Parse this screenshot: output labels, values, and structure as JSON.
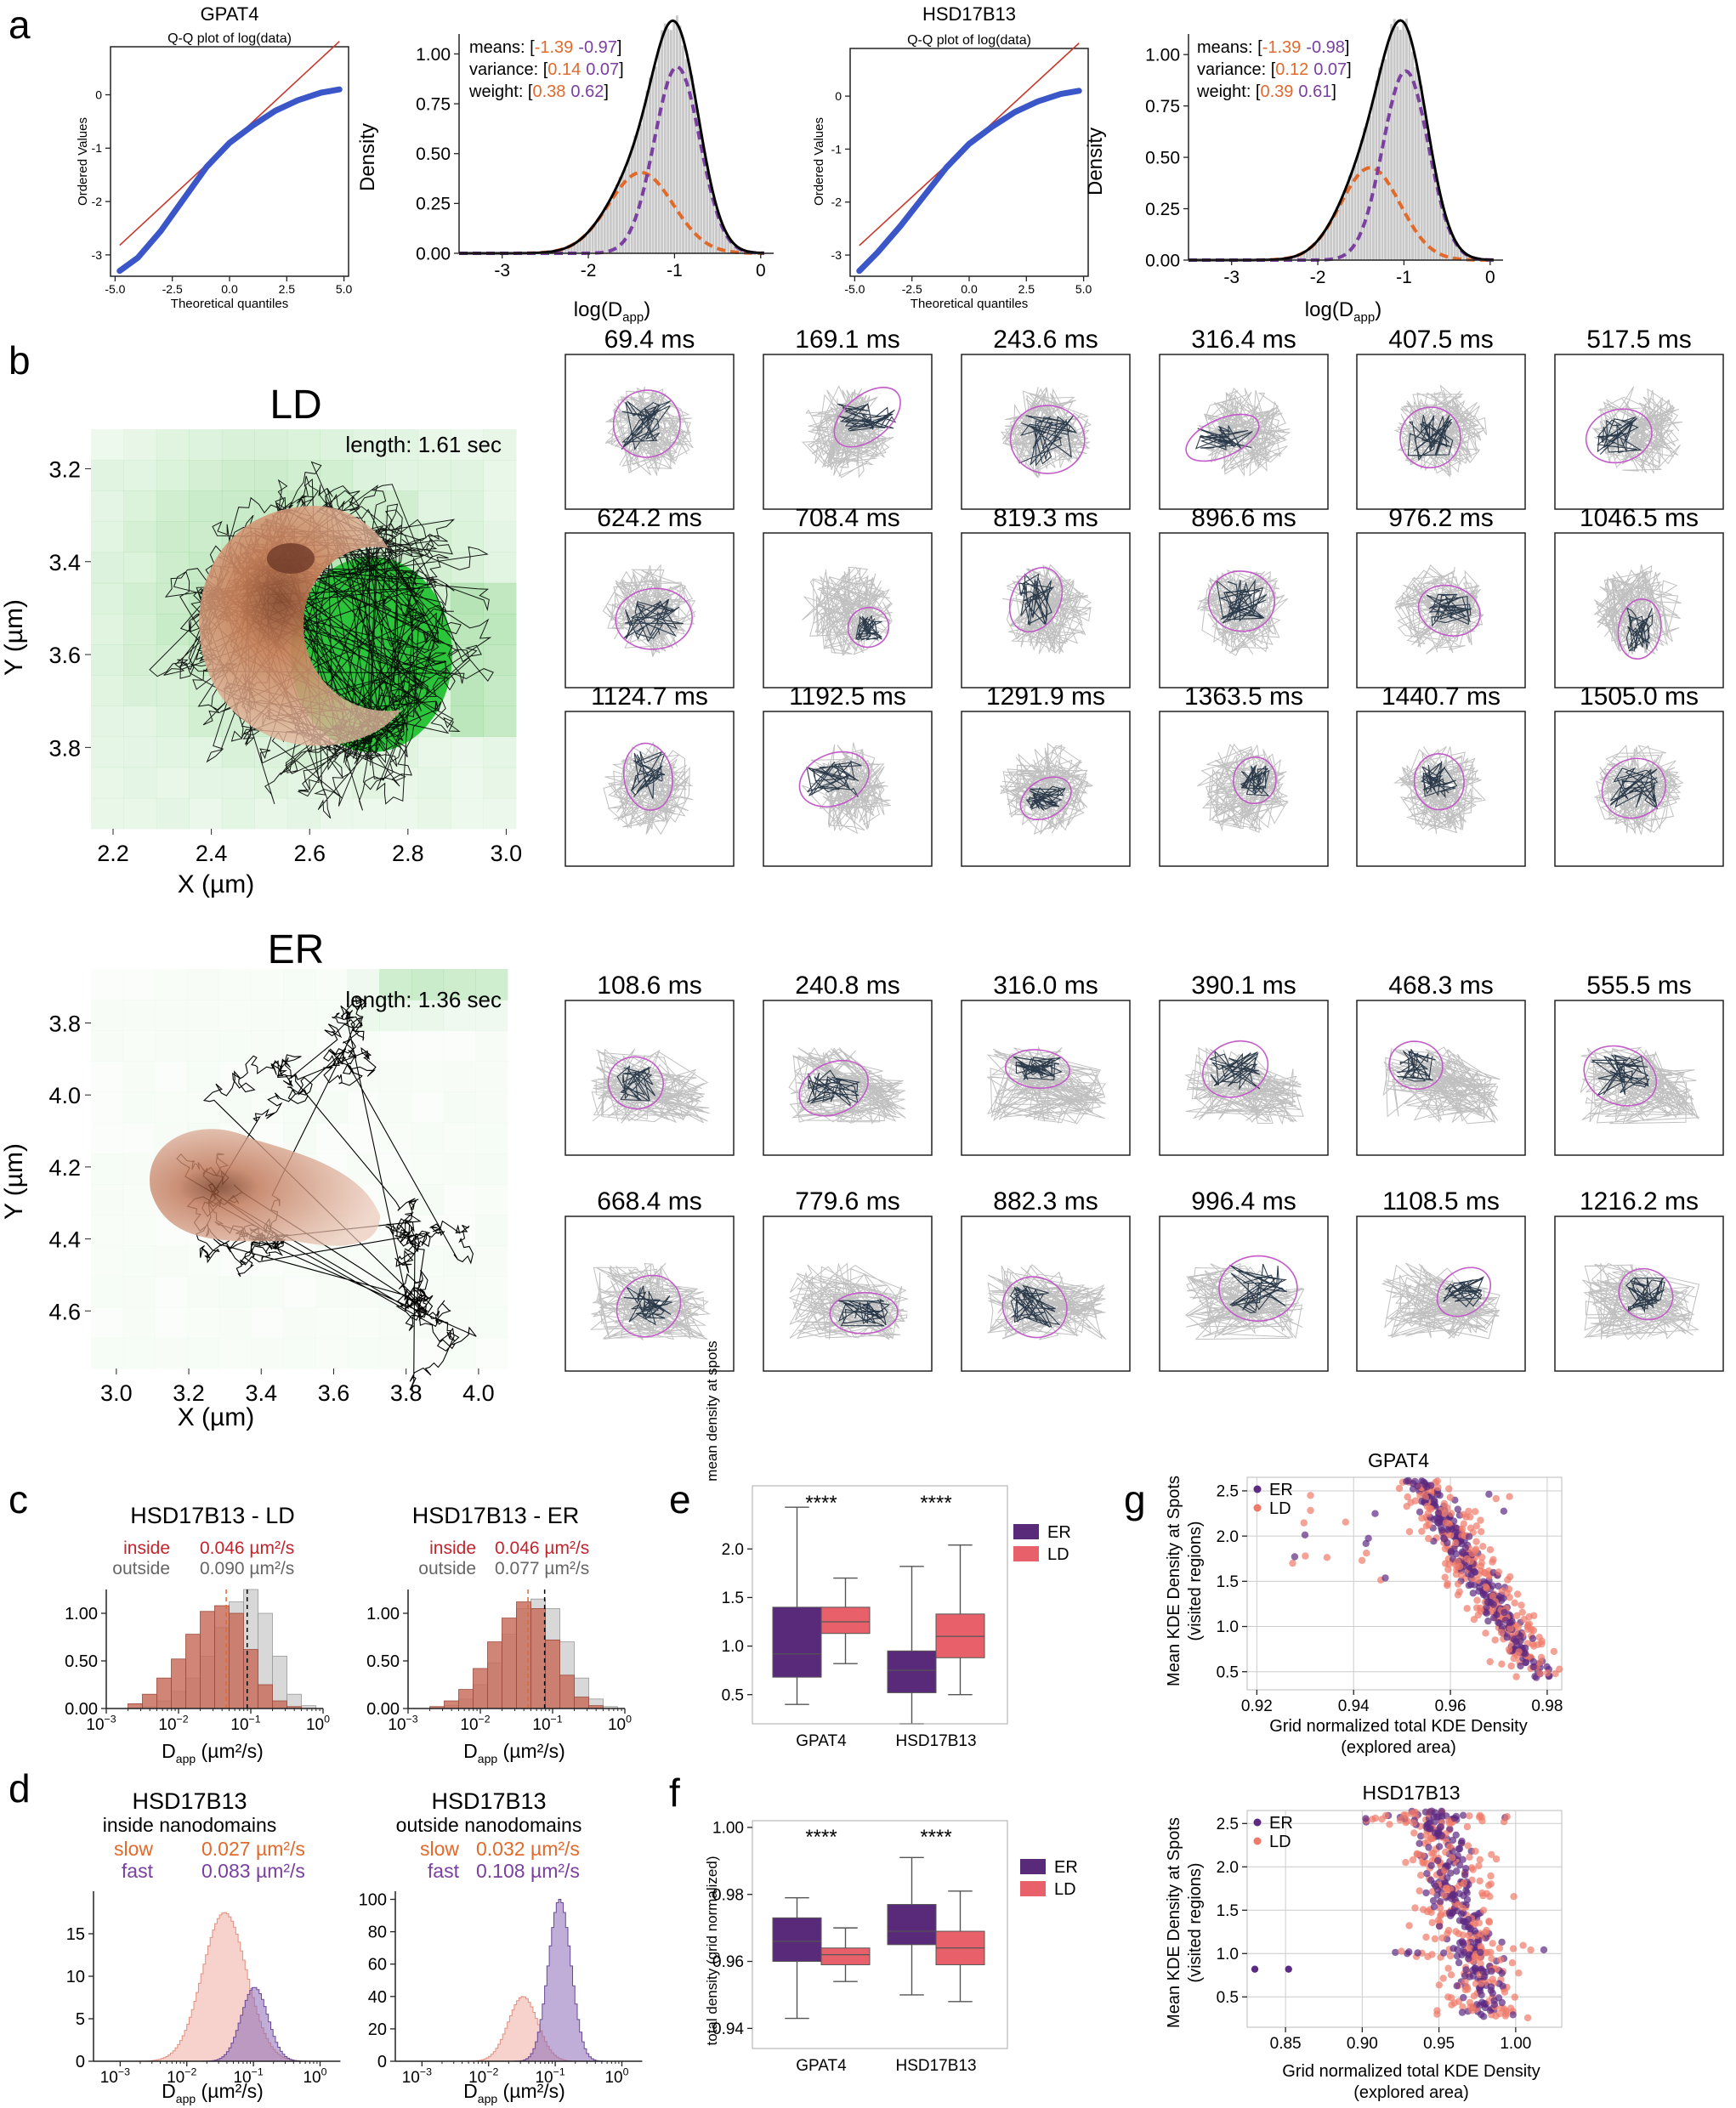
{
  "panels": {
    "a": "a",
    "b": "b",
    "c": "c",
    "d": "d",
    "e": "e",
    "f": "f",
    "g": "g"
  },
  "colors": {
    "orange": "#e06a2c",
    "purple": "#7a3fa0",
    "dark_purple": "#5a2a7a",
    "red_line": "#c8372d",
    "blue_pts": "#3a56c8",
    "gray_hist": "#c8c8c8",
    "ld_box": "#e8606a",
    "er_box": "#5a2a7a",
    "inside_red": "#c0242d",
    "outside_gray": "#666666",
    "hist_red": "#c9705e",
    "hist_purple": "#8d6bb8",
    "hist_pink": "#f2b8b0",
    "magenta_contour": "#c25ac8",
    "track_gray": "#c0c0c0",
    "green_bg": "#7ccf7c",
    "orange_blob": "#c8764e"
  },
  "chart_data": [
    {
      "id": "a-qq-gpat4",
      "type": "scatter",
      "title": "GPAT4",
      "subtitle": "Q-Q plot of log(data)",
      "xlabel": "Theoretical quantiles",
      "ylabel": "Ordered Values",
      "xlim": [
        -5.2,
        5.2
      ],
      "ylim": [
        -3.4,
        0.9
      ],
      "xticks": [
        "-5.0",
        "-2.5",
        "0.0",
        "2.5",
        "5.0"
      ],
      "yticks": [
        "-3",
        "-2",
        "-1",
        "0"
      ],
      "series": [
        {
          "x": [
            -4.8,
            -4.0,
            -3.0,
            -2.0,
            -1.0,
            0.0,
            1.0,
            2.0,
            3.0,
            4.0,
            4.8
          ],
          "y": [
            -3.3,
            -3.05,
            -2.55,
            -1.95,
            -1.35,
            -0.9,
            -0.58,
            -0.3,
            -0.1,
            0.04,
            0.1
          ]
        },
        {
          "x": [
            -4.8,
            4.8
          ],
          "y": [
            -2.82,
            1.0
          ]
        }
      ]
    },
    {
      "id": "a-gmm-gpat4",
      "type": "area",
      "xlabel": "log(Dapp)",
      "ylabel": "Density",
      "xlim": [
        -3.5,
        0.15
      ],
      "ylim": [
        0,
        1.1
      ],
      "xticks": [
        "-3",
        "-2",
        "-1",
        "0"
      ],
      "yticks": [
        "0.00",
        "0.25",
        "0.50",
        "0.75",
        "1.00"
      ],
      "means": [
        "-1.39",
        "-0.97"
      ],
      "variance": [
        "0.14",
        "0.07"
      ],
      "weight": [
        "0.38",
        "0.62"
      ],
      "series": [
        {
          "name": "total",
          "mu": [
            -1.39,
            -0.97
          ],
          "var": [
            0.14,
            0.07
          ],
          "w": [
            0.38,
            0.62
          ]
        },
        {
          "name": "slow",
          "mu": -1.39,
          "var": 0.14,
          "w": 0.38
        },
        {
          "name": "fast",
          "mu": -0.97,
          "var": 0.07,
          "w": 0.62
        }
      ]
    },
    {
      "id": "a-qq-hsd",
      "type": "scatter",
      "title": "HSD17B13",
      "subtitle": "Q-Q plot of log(data)",
      "xlabel": "Theoretical quantiles",
      "ylabel": "Ordered Values",
      "xlim": [
        -5.2,
        5.2
      ],
      "ylim": [
        -3.4,
        0.9
      ],
      "xticks": [
        "-5.0",
        "-2.5",
        "0.0",
        "2.5",
        "5.0"
      ],
      "yticks": [
        "-3",
        "-2",
        "-1",
        "0"
      ],
      "series": [
        {
          "x": [
            -4.8,
            -4.0,
            -3.0,
            -2.0,
            -1.0,
            0.0,
            1.0,
            2.0,
            3.0,
            4.0,
            4.8
          ],
          "y": [
            -3.3,
            -2.95,
            -2.45,
            -1.9,
            -1.35,
            -0.9,
            -0.58,
            -0.3,
            -0.1,
            0.04,
            0.1
          ]
        },
        {
          "x": [
            -4.8,
            4.8
          ],
          "y": [
            -2.82,
            1.0
          ]
        }
      ]
    },
    {
      "id": "a-gmm-hsd",
      "type": "area",
      "xlabel": "log(Dapp)",
      "ylabel": "Density",
      "xlim": [
        -3.5,
        0.15
      ],
      "ylim": [
        0,
        1.1
      ],
      "xticks": [
        "-3",
        "-2",
        "-1",
        "0"
      ],
      "yticks": [
        "0.00",
        "0.25",
        "0.50",
        "0.75",
        "1.00"
      ],
      "means": [
        "-1.39",
        "-0.98"
      ],
      "variance": [
        "0.12",
        "0.07"
      ],
      "weight": [
        "0.39",
        "0.61"
      ],
      "series": [
        {
          "name": "total",
          "mu": [
            -1.39,
            -0.98
          ],
          "var": [
            0.12,
            0.07
          ],
          "w": [
            0.39,
            0.61
          ]
        },
        {
          "name": "slow",
          "mu": -1.39,
          "var": 0.12,
          "w": 0.39
        },
        {
          "name": "fast",
          "mu": -0.98,
          "var": 0.07,
          "w": 0.61
        }
      ]
    },
    {
      "id": "c-ld",
      "type": "bar",
      "title": "HSD17B13 - LD",
      "legend": [
        {
          "name": "inside",
          "value": "0.046 µm²/s"
        },
        {
          "name": "outside",
          "value": "0.090 µm²/s"
        }
      ],
      "xlabel": "Dapp (µm²/s)",
      "xlim_log10": [
        -3,
        0
      ],
      "ylim": [
        0,
        1.25
      ],
      "yticks": [
        "0.00",
        "0.50",
        "1.00"
      ],
      "inside_median_log10": -1.34,
      "outside_median_log10": -1.05,
      "bins_log10": [
        -2.6,
        -2.4,
        -2.2,
        -2.0,
        -1.8,
        -1.6,
        -1.4,
        -1.2,
        -1.0,
        -0.8,
        -0.6,
        -0.4,
        -0.2
      ],
      "series": [
        {
          "name": "inside",
          "values": [
            0.05,
            0.15,
            0.32,
            0.52,
            0.78,
            1.02,
            1.08,
            1.0,
            0.62,
            0.25,
            0.08,
            0.02,
            0
          ]
        },
        {
          "name": "outside",
          "values": [
            0,
            0.02,
            0.08,
            0.18,
            0.32,
            0.55,
            0.85,
            1.12,
            1.25,
            1.0,
            0.55,
            0.15,
            0.03
          ]
        }
      ]
    },
    {
      "id": "c-er",
      "type": "bar",
      "title": "HSD17B13 - ER",
      "legend": [
        {
          "name": "inside",
          "value": "0.046 µm²/s"
        },
        {
          "name": "outside",
          "value": "0.077 µm²/s"
        }
      ],
      "xlabel": "Dapp (µm²/s)",
      "xlim_log10": [
        -3,
        0
      ],
      "ylim": [
        0,
        1.25
      ],
      "yticks": [
        "0.00",
        "0.50",
        "1.00"
      ],
      "inside_median_log10": -1.34,
      "outside_median_log10": -1.11,
      "bins_log10": [
        -2.6,
        -2.4,
        -2.2,
        -2.0,
        -1.8,
        -1.6,
        -1.4,
        -1.2,
        -1.0,
        -0.8,
        -0.6,
        -0.4,
        -0.2
      ],
      "series": [
        {
          "name": "inside",
          "values": [
            0.02,
            0.08,
            0.2,
            0.42,
            0.7,
            0.95,
            1.12,
            1.05,
            0.72,
            0.35,
            0.12,
            0.03,
            0
          ]
        },
        {
          "name": "outside",
          "values": [
            0,
            0.03,
            0.1,
            0.25,
            0.48,
            0.78,
            1.05,
            1.15,
            1.05,
            0.7,
            0.32,
            0.1,
            0.02
          ]
        }
      ]
    },
    {
      "id": "d-inside",
      "type": "area",
      "title": "HSD17B13",
      "subtitle": "inside nanodomains",
      "legend": [
        {
          "name": "slow",
          "value": "0.027 µm²/s"
        },
        {
          "name": "fast",
          "value": "0.083 µm²/s"
        }
      ],
      "xlabel": "Dapp (µm²/s)",
      "xlim_log10": [
        -3.4,
        0.3
      ],
      "ylim": [
        0,
        20
      ],
      "yticks": [
        "0",
        "5",
        "10",
        "15"
      ],
      "series": [
        {
          "name": "slow",
          "mu_log10": -1.45,
          "sigma": 0.33,
          "peak": 17.5
        },
        {
          "name": "fast",
          "mu_log10": -1.0,
          "sigma": 0.2,
          "peak": 8.7
        }
      ]
    },
    {
      "id": "d-outside",
      "type": "area",
      "title": "HSD17B13",
      "subtitle": "outside nanodomains",
      "legend": [
        {
          "name": "slow",
          "value": "0.032 µm²/s"
        },
        {
          "name": "fast",
          "value": "0.108 µm²/s"
        }
      ],
      "xlabel": "Dapp (µm²/s)",
      "xlim_log10": [
        -3.4,
        0.3
      ],
      "ylim": [
        0,
        105
      ],
      "yticks": [
        "0",
        "20",
        "40",
        "60",
        "80",
        "100"
      ],
      "series": [
        {
          "name": "slow",
          "mu_log10": -1.5,
          "sigma": 0.22,
          "peak": 40
        },
        {
          "name": "fast",
          "mu_log10": -0.95,
          "sigma": 0.17,
          "peak": 100
        }
      ]
    },
    {
      "id": "e",
      "type": "bar",
      "ylabel": "mean density at spots",
      "categories": [
        "GPAT4",
        "HSD17B13"
      ],
      "ylim": [
        0.2,
        2.65
      ],
      "yticks": [
        "0.5",
        "1.0",
        "1.5",
        "2.0"
      ],
      "significance": [
        "****",
        "****"
      ],
      "legend": [
        "ER",
        "LD"
      ],
      "series": [
        {
          "name": "ER",
          "boxes": [
            {
              "whislo": 0.4,
              "q1": 0.68,
              "med": 0.92,
              "q3": 1.4,
              "whishi": 2.43
            },
            {
              "whislo": 0.2,
              "q1": 0.52,
              "med": 0.75,
              "q3": 0.95,
              "whishi": 1.82
            }
          ]
        },
        {
          "name": "LD",
          "boxes": [
            {
              "whislo": 0.82,
              "q1": 1.13,
              "med": 1.25,
              "q3": 1.4,
              "whishi": 1.7
            },
            {
              "whislo": 0.5,
              "q1": 0.88,
              "med": 1.1,
              "q3": 1.33,
              "whishi": 2.04
            }
          ]
        }
      ]
    },
    {
      "id": "f",
      "type": "bar",
      "ylabel": "total density (grid normalized)",
      "categories": [
        "GPAT4",
        "HSD17B13"
      ],
      "ylim": [
        0.934,
        1.002
      ],
      "yticks": [
        "0.94",
        "0.96",
        "0.98",
        "1.00"
      ],
      "significance": [
        "****",
        "****"
      ],
      "legend": [
        "ER",
        "LD"
      ],
      "series": [
        {
          "name": "ER",
          "boxes": [
            {
              "whislo": 0.943,
              "q1": 0.96,
              "med": 0.966,
              "q3": 0.973,
              "whishi": 0.979
            },
            {
              "whislo": 0.95,
              "q1": 0.965,
              "med": 0.969,
              "q3": 0.977,
              "whishi": 0.991
            }
          ]
        },
        {
          "name": "LD",
          "boxes": [
            {
              "whislo": 0.954,
              "q1": 0.959,
              "med": 0.962,
              "q3": 0.964,
              "whishi": 0.97
            },
            {
              "whislo": 0.948,
              "q1": 0.959,
              "med": 0.964,
              "q3": 0.969,
              "whishi": 0.981
            }
          ]
        }
      ]
    },
    {
      "id": "g-gpat4",
      "type": "scatter",
      "title": "GPAT4",
      "xlabel": "Grid normalized total KDE Density",
      "xlabel2": "(explored area)",
      "ylabel": "Mean KDE Density at Spots",
      "ylabel2": "(visited regions)",
      "xlim": [
        0.918,
        0.983
      ],
      "ylim": [
        0.3,
        2.65
      ],
      "xticks": [
        "0.92",
        "0.94",
        "0.96",
        "0.98"
      ],
      "yticks": [
        "0.5",
        "1.0",
        "1.5",
        "2.0",
        "2.5"
      ],
      "legend": [
        "ER",
        "LD"
      ]
    },
    {
      "id": "g-hsd",
      "type": "scatter",
      "title": "HSD17B13",
      "xlabel": "Grid normalized total KDE Density",
      "xlabel2": "(explored area)",
      "ylabel": "Mean KDE Density at Spots",
      "ylabel2": "(visited regions)",
      "xlim": [
        0.825,
        1.03
      ],
      "ylim": [
        0.15,
        2.65
      ],
      "xticks": [
        "0.85",
        "0.90",
        "0.95",
        "1.00"
      ],
      "yticks": [
        "0.5",
        "1.0",
        "1.5",
        "2.0",
        "2.5"
      ],
      "legend": [
        "ER",
        "LD"
      ]
    }
  ],
  "panel_b": {
    "ld": {
      "title": "LD",
      "length": "length: 1.61 sec",
      "xlabel": "X (µm)",
      "ylabel": "Y (µm)",
      "xticks": [
        "2.2",
        "2.4",
        "2.6",
        "2.8",
        "3.0"
      ],
      "yticks": [
        "3.2",
        "3.4",
        "3.6",
        "3.8"
      ],
      "frames": [
        "69.4 ms",
        "169.1 ms",
        "243.6 ms",
        "316.4 ms",
        "407.5 ms",
        "517.5 ms",
        "624.2 ms",
        "708.4 ms",
        "819.3 ms",
        "896.6 ms",
        "976.2 ms",
        "1046.5 ms",
        "1124.7 ms",
        "1192.5 ms",
        "1291.9 ms",
        "1363.5 ms",
        "1440.7 ms",
        "1505.0 ms"
      ]
    },
    "er": {
      "title": "ER",
      "length": "length: 1.36 sec",
      "xlabel": "X (µm)",
      "ylabel": "Y (µm)",
      "xticks": [
        "3.0",
        "3.2",
        "3.4",
        "3.6",
        "3.8",
        "4.0"
      ],
      "yticks": [
        "3.8",
        "4.0",
        "4.2",
        "4.4",
        "4.6"
      ],
      "frames": [
        "108.6 ms",
        "240.8 ms",
        "316.0 ms",
        "390.1 ms",
        "468.3 ms",
        "555.5 ms",
        "668.4 ms",
        "779.6 ms",
        "882.3 ms",
        "996.4 ms",
        "1108.5 ms",
        "1216.2 ms"
      ]
    }
  },
  "text": {
    "means": "means: [",
    "variance": "variance: [",
    "weight": "weight: [",
    "close": "]",
    "inside": "inside",
    "outside": "outside",
    "slow": "slow",
    "fast": "fast",
    "dapp_d": "D",
    "dapp_sub": "app",
    "dapp_unit": " (µm²/s)",
    "log_d": "log(D",
    "log_close": ")",
    "x_um": "X (µm)",
    "y_um": "Y (µm)"
  }
}
